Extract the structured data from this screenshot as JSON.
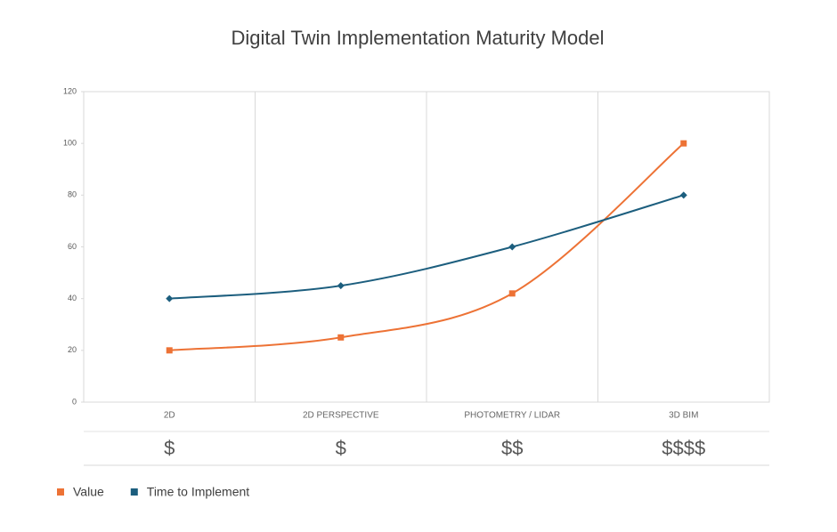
{
  "chart_data": {
    "type": "line",
    "title": "Digital Twin Implementation Maturity Model",
    "categories": [
      "2D",
      "2D PERSPECTIVE",
      "PHOTOMETRY / LIDAR",
      "3D BIM"
    ],
    "cost_labels": [
      "$",
      "$",
      "$$",
      "$$$$"
    ],
    "series": [
      {
        "name": "Value",
        "color": "#ed7235",
        "marker": "square",
        "values": [
          20,
          25,
          42,
          100
        ]
      },
      {
        "name": "Time to Implement",
        "color": "#1c5e7e",
        "marker": "diamond",
        "values": [
          40,
          45,
          60,
          80
        ]
      }
    ],
    "ylim": [
      0,
      120
    ],
    "yticks": [
      0,
      20,
      40,
      60,
      80,
      100,
      120
    ],
    "smooth": true
  }
}
